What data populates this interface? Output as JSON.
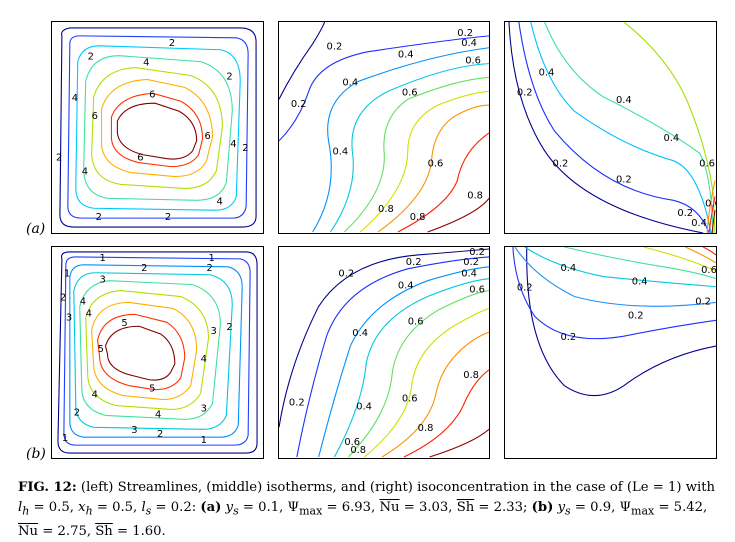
{
  "row_labels": [
    "(a)",
    "(b)"
  ],
  "contour_labels": {
    "a_left": [
      "2",
      "2",
      "2",
      "2",
      "2",
      "2",
      "2",
      "4",
      "4",
      "4",
      "4",
      "4",
      "6",
      "6",
      "6",
      "6"
    ],
    "a_middle": [
      "0.2",
      "0.2",
      "0.2",
      "0.4",
      "0.4",
      "0.4",
      "0.4",
      "0.6",
      "0.6",
      "0.6",
      "0.8",
      "0.8",
      "0.8"
    ],
    "a_right": [
      "0.4",
      "0.4",
      "0.4",
      "0.2",
      "0.2",
      "0.2",
      "0.2",
      "0.6",
      "0.4",
      "0.6"
    ],
    "b_left": [
      "1",
      "1",
      "1",
      "2",
      "2",
      "2",
      "2",
      "2",
      "3",
      "3",
      "3",
      "3",
      "3",
      "4",
      "4",
      "4",
      "4",
      "4",
      "5",
      "5",
      "5",
      "2",
      "1",
      "1"
    ],
    "b_middle": [
      "0.2",
      "0.2",
      "0.2",
      "0.2",
      "0.2",
      "0.4",
      "0.4",
      "0.4",
      "0.4",
      "0.6",
      "0.6",
      "0.6",
      "0.6",
      "0.8",
      "0.8",
      "0.8"
    ],
    "b_right": [
      "0.4",
      "0.4",
      "0.6",
      "0.2",
      "0.2",
      "0.2",
      "0.2"
    ]
  },
  "caption": {
    "fig": "FIG. 12:",
    "text1": " (left) Streamlines, (middle) isotherms, and (right) isoconcentration in the case of (Le = 1) with ",
    "lh_sym": "l",
    "lh_sub": "h",
    "lh_val": " = 0.5,",
    "xh_sym": "x",
    "xh_sub": "h",
    "xh_val": " = 0.5, ",
    "ls_sym": "l",
    "ls_sub": "s",
    "ls_val": " = 0.2: ",
    "a_lbl": "(a)",
    "a_ys_sym": "y",
    "a_ys_sub": "s",
    "a_ys_val": " = 0.1, Ψ",
    "a_psi_sub": "max",
    "a_psi_val": " = 6.93, ",
    "a_nu_lbl": "Nu",
    "a_nu_val": " = 3.03, ",
    "a_sh_lbl": "Sh",
    "a_sh_val": " = 2.33; ",
    "b_lbl": "(b)",
    "b_ys_sym": "y",
    "b_ys_sub": "s",
    "b_ys_val": " = 0.9, Ψ",
    "b_psi_sub": "max",
    "b_psi_val": " = 5.42, ",
    "b_nu_lbl": "Nu",
    "b_nu_val": " = 2.75, ",
    "b_sh_lbl": "Sh",
    "b_sh_val": " = 1.60."
  }
}
